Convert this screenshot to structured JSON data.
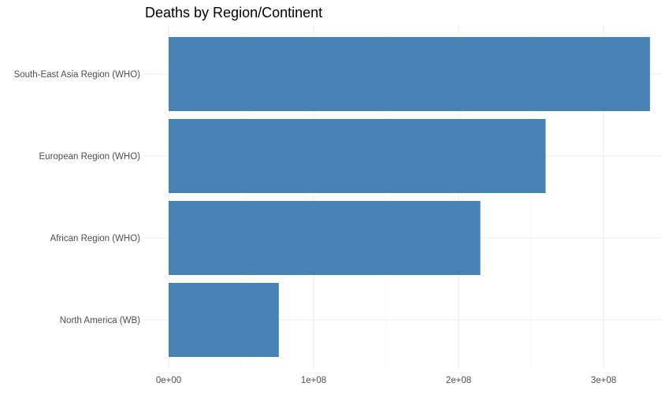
{
  "chart_data": {
    "type": "bar",
    "orientation": "horizontal",
    "title": "Deaths by Region/Continent",
    "xlabel": "",
    "ylabel": "",
    "categories": [
      "South-East Asia Region (WHO)",
      "European Region (WHO)",
      "African Region (WHO)",
      "North America (WB)"
    ],
    "values": [
      332000000,
      260000000,
      215000000,
      76000000
    ],
    "xlim": [
      0,
      348000000
    ],
    "x_ticks": [
      0,
      100000000,
      200000000,
      300000000
    ],
    "x_tick_labels": [
      "0e+00",
      "1e+08",
      "2e+08",
      "3e+08"
    ],
    "grid": true,
    "legend": "none",
    "bar_color": "#4682B4"
  }
}
